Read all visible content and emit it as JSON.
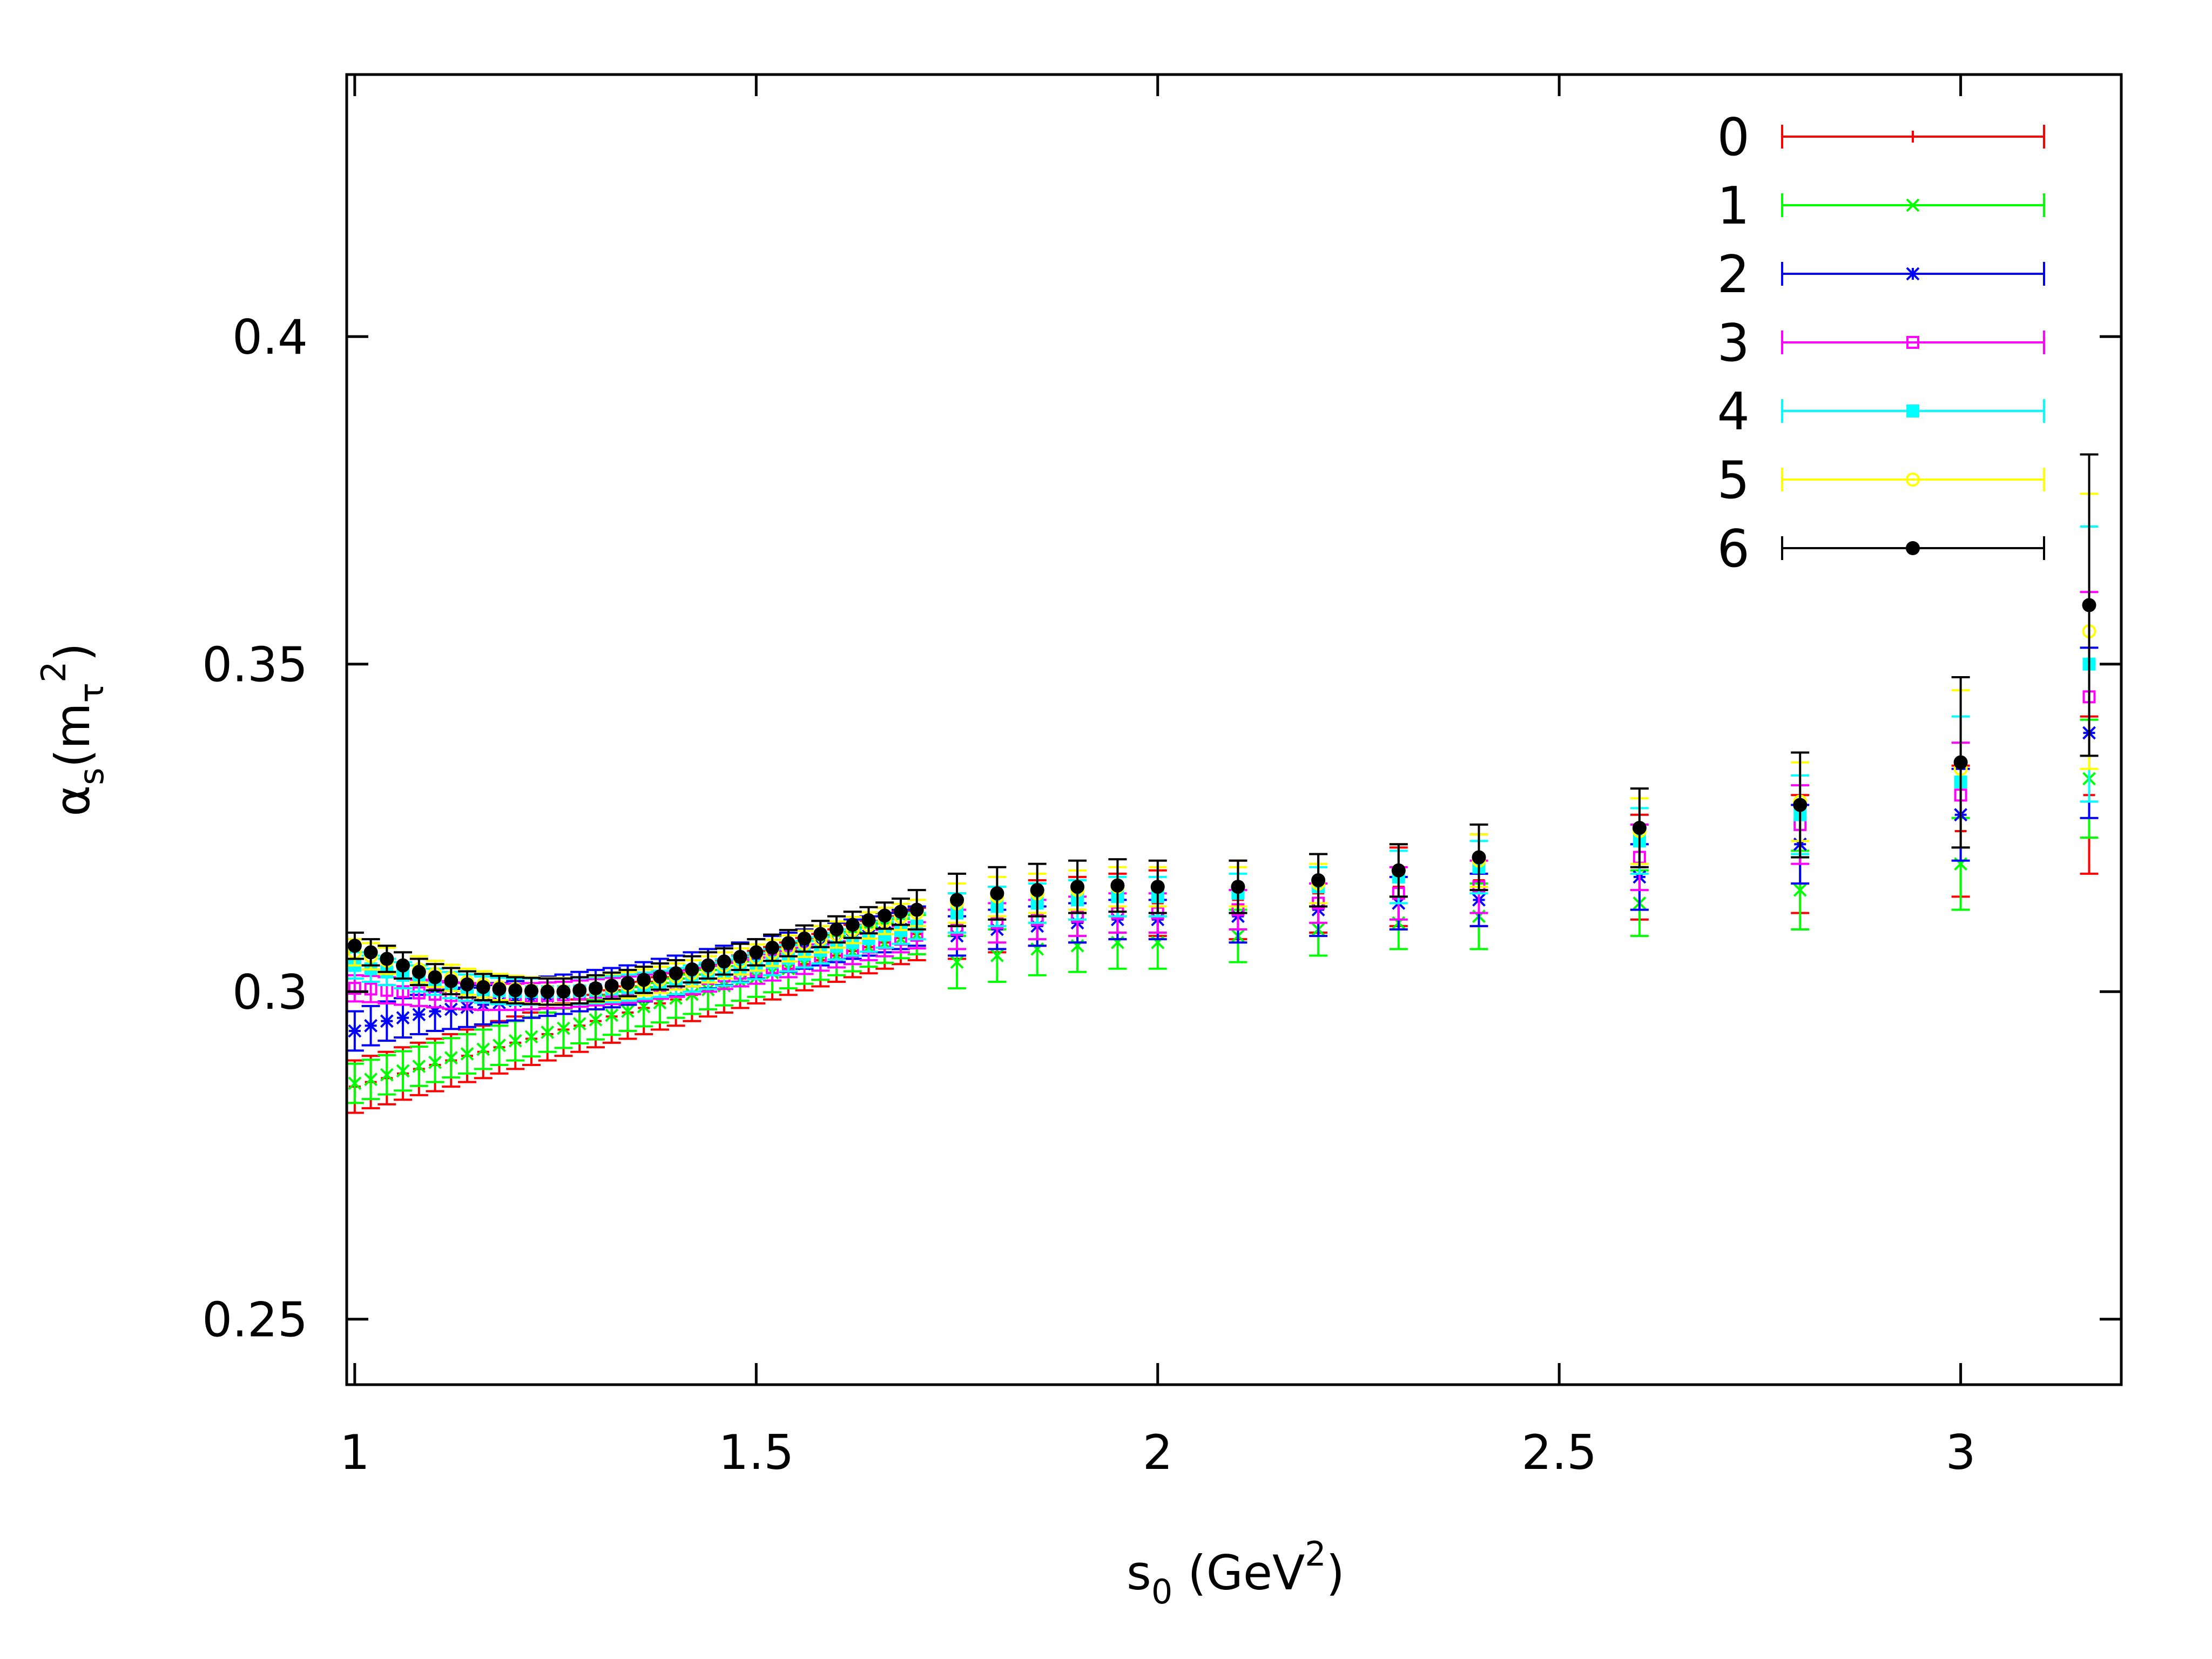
{
  "chart_data": {
    "type": "scatter",
    "title": "",
    "xlabel": {
      "base": "s",
      "sub": "0",
      "unit_pre": " (GeV",
      "sup": "2",
      "unit_post": ")"
    },
    "ylabel": {
      "alpha": "α",
      "sub": "s",
      "open": "(m",
      "tau": "τ",
      "sup": "2",
      "close": ")"
    },
    "xlim": [
      0.99,
      3.2
    ],
    "ylim": [
      0.24,
      0.44
    ],
    "xticks": [
      1,
      1.5,
      2,
      2.5,
      3
    ],
    "xtick_labels": [
      "1",
      "1.5",
      "2",
      "2.5",
      "3"
    ],
    "yticks": [
      0.25,
      0.3,
      0.35,
      0.4
    ],
    "ytick_labels": [
      "0.25",
      "0.3",
      "0.35",
      "0.4"
    ],
    "grid": false,
    "legend_position": "top-right",
    "series": [
      {
        "name": "0",
        "color": "#ff0000",
        "marker": "plus"
      },
      {
        "name": "1",
        "color": "#00ff00",
        "marker": "cross"
      },
      {
        "name": "2",
        "color": "#0000ff",
        "marker": "star"
      },
      {
        "name": "3",
        "color": "#ff00ff",
        "marker": "square-open"
      },
      {
        "name": "4",
        "color": "#00ffff",
        "marker": "square-filled"
      },
      {
        "name": "5",
        "color": "#ffff00",
        "marker": "circle-open"
      },
      {
        "name": "6",
        "color": "#000000",
        "marker": "circle-filled"
      }
    ],
    "x": [
      1.0,
      1.02,
      1.04,
      1.06,
      1.08,
      1.1,
      1.12,
      1.14,
      1.16,
      1.18,
      1.2,
      1.22,
      1.24,
      1.26,
      1.28,
      1.3,
      1.32,
      1.34,
      1.36,
      1.38,
      1.4,
      1.42,
      1.44,
      1.46,
      1.48,
      1.5,
      1.52,
      1.54,
      1.56,
      1.58,
      1.6,
      1.62,
      1.64,
      1.66,
      1.68,
      1.7,
      1.75,
      1.8,
      1.85,
      1.9,
      1.95,
      2.0,
      2.1,
      2.2,
      2.3,
      2.4,
      2.6,
      2.8,
      3.0,
      3.16
    ],
    "y": [
      [
        0.2855,
        0.2862,
        0.2868,
        0.2875,
        0.2882,
        0.2888,
        0.2895,
        0.2902,
        0.2908,
        0.2915,
        0.2922,
        0.2928,
        0.2935,
        0.2942,
        0.2948,
        0.2955,
        0.2962,
        0.2968,
        0.2975,
        0.2982,
        0.2988,
        0.2995,
        0.3002,
        0.3008,
        0.3015,
        0.3022,
        0.3028,
        0.3035,
        0.3042,
        0.3048,
        0.3055,
        0.3062,
        0.3068,
        0.3075,
        0.3082,
        0.3088,
        0.31,
        0.311,
        0.312,
        0.3125,
        0.313,
        0.3135,
        0.314,
        0.315,
        0.316,
        0.317,
        0.319,
        0.321,
        0.3245,
        0.33
      ],
      [
        0.286,
        0.2866,
        0.2873,
        0.2879,
        0.2886,
        0.2892,
        0.2899,
        0.2905,
        0.2912,
        0.2918,
        0.2925,
        0.2931,
        0.2938,
        0.2944,
        0.2951,
        0.2957,
        0.2964,
        0.297,
        0.2977,
        0.2983,
        0.299,
        0.2996,
        0.3003,
        0.3009,
        0.3016,
        0.3022,
        0.3029,
        0.3035,
        0.3042,
        0.3048,
        0.3055,
        0.3061,
        0.3068,
        0.3074,
        0.3081,
        0.3087,
        0.3045,
        0.3055,
        0.3065,
        0.307,
        0.3075,
        0.3075,
        0.3085,
        0.3095,
        0.3105,
        0.3115,
        0.3135,
        0.3155,
        0.3195,
        0.3325
      ],
      [
        0.294,
        0.2948,
        0.2955,
        0.296,
        0.2965,
        0.297,
        0.2973,
        0.2976,
        0.298,
        0.2983,
        0.2986,
        0.299,
        0.2993,
        0.2996,
        0.3,
        0.3003,
        0.3006,
        0.301,
        0.3015,
        0.302,
        0.3025,
        0.303,
        0.3035,
        0.304,
        0.3045,
        0.305,
        0.3055,
        0.306,
        0.3065,
        0.307,
        0.3075,
        0.308,
        0.3085,
        0.309,
        0.3095,
        0.31,
        0.3085,
        0.3095,
        0.31,
        0.3105,
        0.311,
        0.311,
        0.3115,
        0.3125,
        0.3135,
        0.314,
        0.3175,
        0.3225,
        0.327,
        0.3395
      ],
      [
        0.3005,
        0.3004,
        0.3002,
        0.3,
        0.2998,
        0.2996,
        0.2994,
        0.2993,
        0.2992,
        0.2992,
        0.2992,
        0.2993,
        0.2994,
        0.2995,
        0.2997,
        0.2999,
        0.3001,
        0.3003,
        0.3006,
        0.3009,
        0.3012,
        0.3016,
        0.302,
        0.3024,
        0.3028,
        0.3032,
        0.3037,
        0.3042,
        0.3047,
        0.3052,
        0.3057,
        0.3062,
        0.3068,
        0.3074,
        0.308,
        0.3086,
        0.3095,
        0.3105,
        0.311,
        0.3115,
        0.312,
        0.312,
        0.3125,
        0.3135,
        0.315,
        0.316,
        0.3205,
        0.3255,
        0.33,
        0.345
      ],
      [
        0.304,
        0.3035,
        0.303,
        0.3025,
        0.302,
        0.3015,
        0.301,
        0.3006,
        0.3003,
        0.3001,
        0.3,
        0.3,
        0.3,
        0.3,
        0.3001,
        0.3002,
        0.3004,
        0.3006,
        0.3009,
        0.3012,
        0.3016,
        0.302,
        0.3024,
        0.3029,
        0.3034,
        0.3039,
        0.3045,
        0.3051,
        0.3057,
        0.3063,
        0.3069,
        0.3075,
        0.3081,
        0.3087,
        0.3093,
        0.31,
        0.312,
        0.313,
        0.3135,
        0.314,
        0.3145,
        0.3145,
        0.315,
        0.316,
        0.3175,
        0.319,
        0.323,
        0.327,
        0.332,
        0.35
      ],
      [
        0.306,
        0.3054,
        0.3047,
        0.304,
        0.3034,
        0.3027,
        0.3021,
        0.3015,
        0.3011,
        0.3007,
        0.3004,
        0.3002,
        0.3001,
        0.3001,
        0.3002,
        0.3004,
        0.3007,
        0.301,
        0.3014,
        0.3018,
        0.3023,
        0.3028,
        0.3034,
        0.304,
        0.3046,
        0.3052,
        0.3059,
        0.3066,
        0.3073,
        0.308,
        0.3087,
        0.3094,
        0.3101,
        0.3108,
        0.3114,
        0.312,
        0.3135,
        0.3145,
        0.315,
        0.3155,
        0.316,
        0.316,
        0.316,
        0.3165,
        0.3185,
        0.32,
        0.3245,
        0.329,
        0.334,
        0.355
      ],
      [
        0.307,
        0.306,
        0.305,
        0.304,
        0.303,
        0.3022,
        0.3016,
        0.3011,
        0.3007,
        0.3004,
        0.3002,
        0.3001,
        0.3,
        0.3,
        0.3002,
        0.3005,
        0.3009,
        0.3013,
        0.3018,
        0.3023,
        0.3028,
        0.3034,
        0.304,
        0.3046,
        0.3053,
        0.306,
        0.3067,
        0.3074,
        0.3081,
        0.3088,
        0.3095,
        0.3102,
        0.3109,
        0.3116,
        0.3122,
        0.3125,
        0.314,
        0.315,
        0.3155,
        0.316,
        0.3162,
        0.316,
        0.316,
        0.317,
        0.3185,
        0.3205,
        0.325,
        0.3285,
        0.335,
        0.359
      ]
    ],
    "yerr": [
      [
        0.004,
        0.004,
        0.004,
        0.004,
        0.004,
        0.004,
        0.004,
        0.004,
        0.004,
        0.004,
        0.004,
        0.004,
        0.004,
        0.004,
        0.004,
        0.004,
        0.004,
        0.004,
        0.004,
        0.004,
        0.004,
        0.004,
        0.004,
        0.004,
        0.004,
        0.004,
        0.004,
        0.004,
        0.004,
        0.004,
        0.004,
        0.004,
        0.004,
        0.004,
        0.004,
        0.004,
        0.005,
        0.005,
        0.005,
        0.005,
        0.005,
        0.005,
        0.006,
        0.006,
        0.006,
        0.007,
        0.008,
        0.009,
        0.01,
        0.012
      ],
      [
        0.003,
        0.003,
        0.003,
        0.003,
        0.003,
        0.003,
        0.003,
        0.003,
        0.003,
        0.003,
        0.003,
        0.003,
        0.003,
        0.003,
        0.003,
        0.003,
        0.003,
        0.003,
        0.003,
        0.003,
        0.003,
        0.003,
        0.003,
        0.003,
        0.003,
        0.003,
        0.003,
        0.003,
        0.003,
        0.003,
        0.003,
        0.003,
        0.003,
        0.003,
        0.003,
        0.003,
        0.004,
        0.004,
        0.004,
        0.004,
        0.004,
        0.004,
        0.004,
        0.004,
        0.004,
        0.005,
        0.005,
        0.006,
        0.007,
        0.009
      ],
      [
        0.003,
        0.003,
        0.003,
        0.003,
        0.003,
        0.003,
        0.003,
        0.003,
        0.003,
        0.003,
        0.003,
        0.003,
        0.003,
        0.003,
        0.003,
        0.003,
        0.003,
        0.003,
        0.003,
        0.003,
        0.003,
        0.003,
        0.003,
        0.003,
        0.003,
        0.003,
        0.003,
        0.003,
        0.003,
        0.003,
        0.003,
        0.003,
        0.003,
        0.003,
        0.003,
        0.003,
        0.003,
        0.003,
        0.003,
        0.003,
        0.003,
        0.003,
        0.004,
        0.004,
        0.004,
        0.004,
        0.005,
        0.006,
        0.007,
        0.013
      ],
      [
        0.002,
        0.002,
        0.002,
        0.002,
        0.002,
        0.002,
        0.002,
        0.002,
        0.002,
        0.002,
        0.002,
        0.002,
        0.002,
        0.002,
        0.002,
        0.002,
        0.002,
        0.002,
        0.002,
        0.002,
        0.002,
        0.002,
        0.002,
        0.002,
        0.002,
        0.002,
        0.002,
        0.002,
        0.002,
        0.002,
        0.002,
        0.002,
        0.002,
        0.002,
        0.002,
        0.002,
        0.003,
        0.003,
        0.003,
        0.003,
        0.003,
        0.003,
        0.003,
        0.003,
        0.004,
        0.004,
        0.005,
        0.006,
        0.008,
        0.016
      ],
      [
        0.002,
        0.002,
        0.002,
        0.002,
        0.002,
        0.002,
        0.002,
        0.002,
        0.002,
        0.002,
        0.002,
        0.002,
        0.002,
        0.002,
        0.002,
        0.002,
        0.002,
        0.002,
        0.002,
        0.002,
        0.002,
        0.002,
        0.002,
        0.002,
        0.002,
        0.002,
        0.002,
        0.002,
        0.002,
        0.002,
        0.002,
        0.002,
        0.002,
        0.002,
        0.002,
        0.002,
        0.003,
        0.003,
        0.003,
        0.003,
        0.003,
        0.003,
        0.003,
        0.003,
        0.004,
        0.004,
        0.005,
        0.006,
        0.01,
        0.021
      ],
      [
        0.002,
        0.002,
        0.002,
        0.002,
        0.002,
        0.002,
        0.002,
        0.002,
        0.002,
        0.002,
        0.002,
        0.002,
        0.002,
        0.002,
        0.002,
        0.002,
        0.002,
        0.002,
        0.002,
        0.002,
        0.002,
        0.002,
        0.002,
        0.002,
        0.002,
        0.002,
        0.002,
        0.002,
        0.002,
        0.002,
        0.002,
        0.002,
        0.002,
        0.002,
        0.002,
        0.002,
        0.003,
        0.003,
        0.003,
        0.003,
        0.003,
        0.003,
        0.003,
        0.003,
        0.004,
        0.004,
        0.005,
        0.006,
        0.012,
        0.021
      ],
      [
        0.002,
        0.002,
        0.002,
        0.002,
        0.002,
        0.002,
        0.002,
        0.002,
        0.002,
        0.002,
        0.002,
        0.002,
        0.002,
        0.002,
        0.002,
        0.002,
        0.002,
        0.002,
        0.002,
        0.002,
        0.002,
        0.002,
        0.002,
        0.002,
        0.002,
        0.002,
        0.002,
        0.002,
        0.002,
        0.002,
        0.002,
        0.002,
        0.002,
        0.002,
        0.002,
        0.003,
        0.004,
        0.004,
        0.004,
        0.004,
        0.004,
        0.004,
        0.004,
        0.004,
        0.004,
        0.005,
        0.006,
        0.008,
        0.013,
        0.023
      ]
    ]
  }
}
